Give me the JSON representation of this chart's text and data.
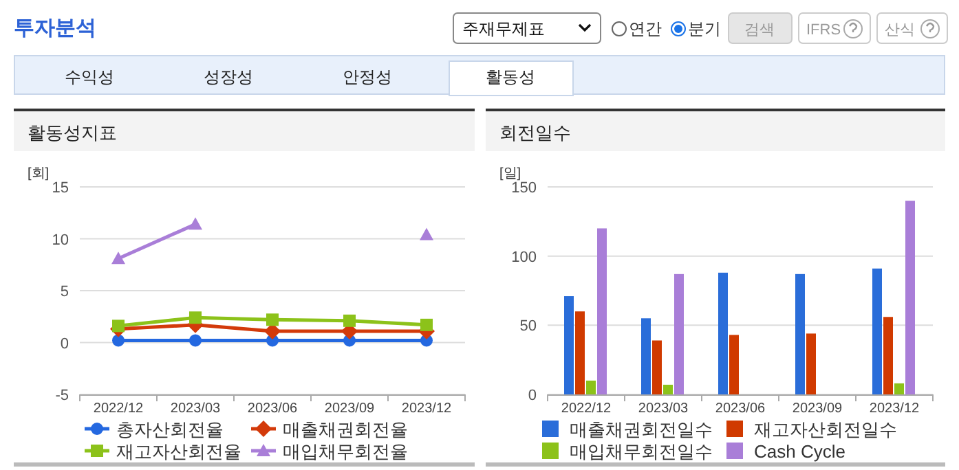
{
  "chart_data": [
    {
      "type": "other",
      "title": "투자분석",
      "annotations": [
        "주재무제표",
        "연간",
        "분기",
        "검색",
        "IFRS",
        "산식",
        "수익성",
        "성장성",
        "안정성",
        "활동성"
      ]
    },
    {
      "type": "line",
      "title": "활동성지표",
      "ylabel": "[회]",
      "categories": [
        "2022/12",
        "2023/03",
        "2023/06",
        "2023/09",
        "2023/12"
      ],
      "ylim": [
        -5,
        15
      ],
      "yticks": [
        -5,
        0,
        5,
        10,
        15
      ],
      "grid": "y",
      "legend": "bottom",
      "series": [
        {
          "name": "총자산회전율",
          "color": "#2468e0",
          "marker": "circle",
          "values": [
            0.2,
            0.2,
            0.2,
            0.2,
            0.2
          ]
        },
        {
          "name": "매출채권회전율",
          "color": "#d33a0a",
          "marker": "diamond",
          "values": [
            1.3,
            1.7,
            1.1,
            1.1,
            1.1
          ]
        },
        {
          "name": "재고자산회전율",
          "color": "#8cc21a",
          "marker": "square",
          "values": [
            1.6,
            2.4,
            2.2,
            2.1,
            1.7
          ]
        },
        {
          "name": "매입채무회전율",
          "color": "#a97ed8",
          "marker": "triangle",
          "values": [
            8.1,
            11.4,
            null,
            null,
            10.4
          ]
        }
      ]
    },
    {
      "type": "bar",
      "title": "회전일수",
      "ylabel": "[일]",
      "categories": [
        "2022/12",
        "2023/03",
        "2023/06",
        "2023/09",
        "2023/12"
      ],
      "ylim": [
        0,
        150
      ],
      "yticks": [
        0,
        50,
        100,
        150
      ],
      "grid": "y",
      "legend": "bottom",
      "series": [
        {
          "name": "매출채권회전일수",
          "color": "#2a6dd9",
          "values": [
            71,
            55,
            88,
            87,
            91
          ]
        },
        {
          "name": "재고자산회전일수",
          "color": "#d03a00",
          "values": [
            60,
            39,
            43,
            44,
            56
          ]
        },
        {
          "name": "매입채무회전일수",
          "color": "#8cc21a",
          "values": [
            10,
            7,
            null,
            null,
            8
          ]
        },
        {
          "name": "Cash Cycle",
          "color": "#a97ed8",
          "values": [
            120,
            87,
            null,
            null,
            140
          ]
        }
      ]
    }
  ]
}
